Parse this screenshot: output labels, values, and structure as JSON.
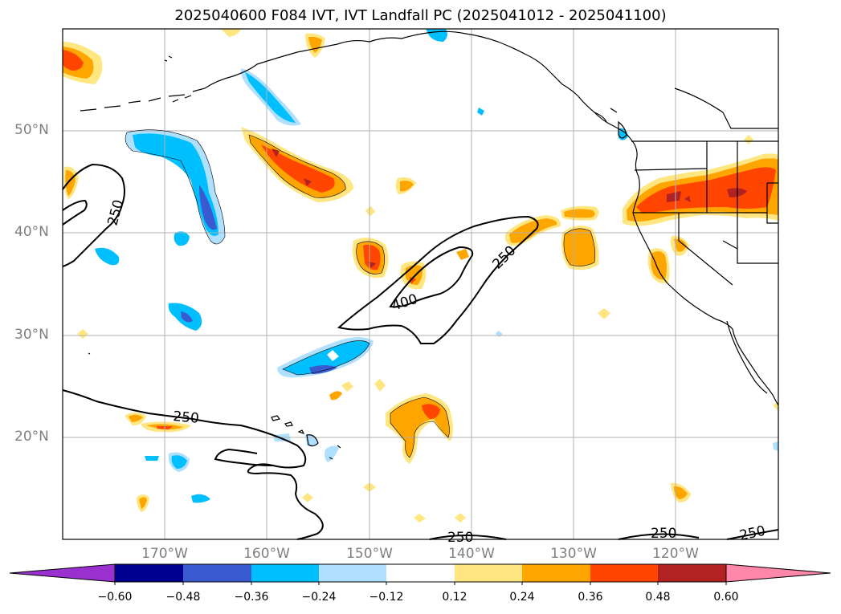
{
  "title": "2025040600 F084 IVT, IVT Landfall PC (2025041012 - 2025041100)",
  "lat_labels": [
    "50°N",
    "40°N",
    "30°N",
    "20°N"
  ],
  "lon_labels": [
    "170°W",
    "160°W",
    "150°W",
    "140°W",
    "130°W",
    "120°W"
  ],
  "contour_label_values": [
    "250",
    "250",
    "400",
    "250",
    "250",
    "250",
    "250"
  ],
  "colorbar": {
    "tick_labels": [
      "−0.60",
      "−0.48",
      "−0.36",
      "−0.24",
      "−0.12",
      "0.12",
      "0.24",
      "0.36",
      "0.48",
      "0.60"
    ],
    "colors": [
      "#9b30d0",
      "#000090",
      "#3a5bd0",
      "#00bfff",
      "#b0e0ff",
      "#ffffff",
      "#ffe680",
      "#ffa500",
      "#ff4500",
      "#b22222",
      "#ff88aa"
    ]
  },
  "colors": {
    "coast": "#000000",
    "grid": "#b0b0b0",
    "contour": "#000000"
  }
}
